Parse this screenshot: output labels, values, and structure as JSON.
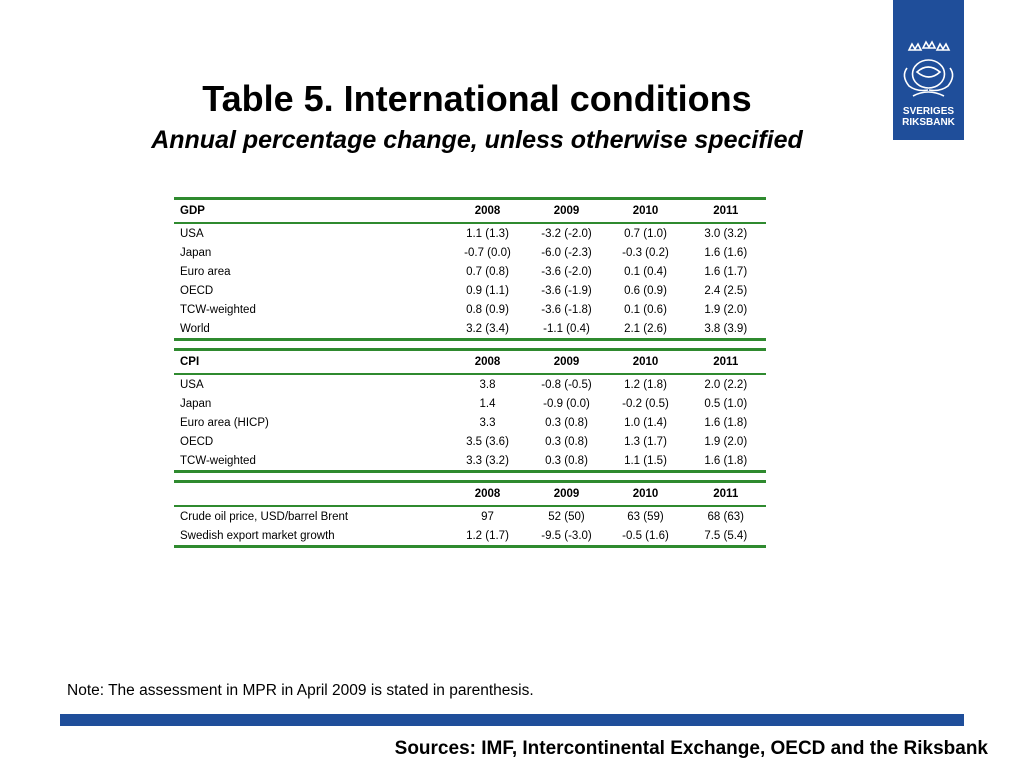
{
  "slide": {
    "title": "Table 5. International conditions",
    "subtitle": "Annual percentage change, unless otherwise specified",
    "note": "Note: The assessment in MPR in April 2009 is stated in parenthesis.",
    "sources": "Sources: IMF, Intercontinental Exchange, OECD and the Riksbank"
  },
  "logo": {
    "line1": "SVERIGES",
    "line2": "RIKSBANK",
    "icon": "crown-emblem-icon",
    "color": "#1f4e9a"
  },
  "colors": {
    "rule": "#2f8a2f",
    "brand": "#1f4e9a"
  },
  "gdp": {
    "header": [
      "GDP",
      "2008",
      "2009",
      "2010",
      "2011"
    ],
    "rows": [
      [
        "USA",
        "1.1 (1.3)",
        "-3.2 (-2.0)",
        "0.7 (1.0)",
        "3.0 (3.2)"
      ],
      [
        "Japan",
        "-0.7 (0.0)",
        "-6.0 (-2.3)",
        "-0.3 (0.2)",
        "1.6 (1.6)"
      ],
      [
        "Euro area",
        "0.7 (0.8)",
        "-3.6 (-2.0)",
        "0.1 (0.4)",
        "1.6 (1.7)"
      ],
      [
        "OECD",
        "0.9 (1.1)",
        "-3.6 (-1.9)",
        "0.6 (0.9)",
        "2.4 (2.5)"
      ],
      [
        "TCW-weighted",
        "0.8 (0.9)",
        "-3.6 (-1.8)",
        "0.1 (0.6)",
        "1.9 (2.0)"
      ],
      [
        "World",
        "3.2 (3.4)",
        "-1.1 (0.4)",
        "2.1 (2.6)",
        "3.8 (3.9)"
      ]
    ]
  },
  "cpi": {
    "header": [
      "CPI",
      "2008",
      "2009",
      "2010",
      "2011"
    ],
    "rows": [
      [
        "USA",
        "3.8",
        "-0.8 (-0.5)",
        "1.2 (1.8)",
        "2.0 (2.2)"
      ],
      [
        "Japan",
        "1.4",
        "-0.9 (0.0)",
        "-0.2 (0.5)",
        "0.5 (1.0)"
      ],
      [
        "Euro area (HICP)",
        "3.3",
        "0.3 (0.8)",
        "1.0 (1.4)",
        "1.6 (1.8)"
      ],
      [
        "OECD",
        "3.5 (3.6)",
        "0.3 (0.8)",
        "1.3 (1.7)",
        "1.9 (2.0)"
      ],
      [
        "TCW-weighted",
        "3.3 (3.2)",
        "0.3 (0.8)",
        "1.1 (1.5)",
        "1.6 (1.8)"
      ]
    ]
  },
  "other": {
    "header": [
      "",
      "2008",
      "2009",
      "2010",
      "2011"
    ],
    "rows": [
      [
        "Crude oil price, USD/barrel Brent",
        "97",
        "52 (50)",
        "63 (59)",
        "68 (63)"
      ],
      [
        "Swedish export market growth",
        "1.2 (1.7)",
        "-9.5 (-3.0)",
        "-0.5 (1.6)",
        "7.5 (5.4)"
      ]
    ]
  }
}
